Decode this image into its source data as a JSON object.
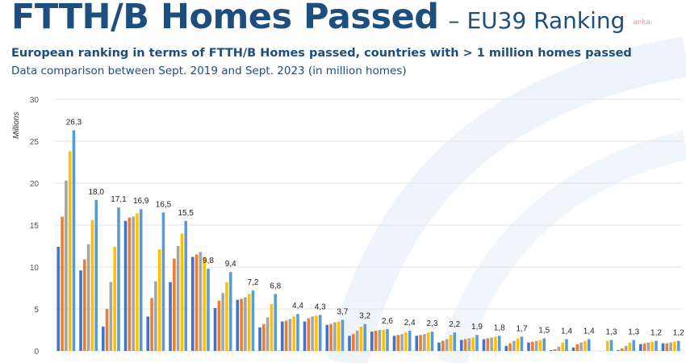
{
  "header": {
    "title": "FTTH/B Homes Passed",
    "title_suffix": "– EU39 Ranking",
    "watermark": "anka",
    "subtitle": "European ranking in terms of FTTH/B Homes passed, countries with > 1 million homes passed",
    "description": "Data comparison between Sept. 2019 and Sept. 2023 (in million homes)"
  },
  "chart_data": {
    "type": "bar",
    "ylabel": "Millions",
    "ylim": [
      0,
      30
    ],
    "yticks": [
      0,
      5,
      10,
      15,
      20,
      25,
      30
    ],
    "grid": true,
    "colors": [
      "#4472c4",
      "#ed7d31",
      "#a5a5a5",
      "#ffc000",
      "#5b9bd5"
    ],
    "series": [
      {
        "values": [
          12.4,
          9.6,
          2.9,
          15.5,
          4.1,
          8.2,
          11.2,
          5.1,
          6.1,
          2.8,
          3.5,
          3.5,
          3.1,
          1.8,
          2.3,
          1.8,
          1.8,
          1.0,
          1.3,
          1.4,
          0.6,
          1.0,
          0.1,
          0.4,
          0.0,
          0.1,
          0.8,
          0.9
        ]
      },
      {
        "values": [
          16.0,
          10.9,
          5.0,
          15.9,
          6.3,
          11.0,
          11.5,
          6.0,
          6.2,
          3.2,
          3.6,
          3.9,
          3.2,
          2.0,
          2.4,
          1.9,
          1.9,
          1.2,
          1.4,
          1.5,
          0.9,
          1.1,
          0.2,
          0.8,
          0.0,
          0.3,
          0.9,
          0.9
        ]
      },
      {
        "values": [
          20.3,
          12.7,
          8.2,
          16.0,
          8.3,
          12.5,
          11.8,
          6.9,
          6.4,
          4.0,
          3.8,
          4.1,
          3.4,
          2.4,
          2.5,
          2.0,
          2.0,
          1.4,
          1.5,
          1.6,
          1.2,
          1.2,
          0.5,
          1.0,
          0.0,
          0.6,
          1.0,
          1.0
        ]
      },
      {
        "values": [
          23.8,
          15.6,
          12.4,
          16.4,
          12.1,
          14.0,
          11.2,
          8.2,
          6.8,
          5.6,
          4.1,
          4.2,
          3.5,
          2.9,
          2.5,
          2.2,
          2.2,
          1.9,
          1.6,
          1.7,
          1.5,
          1.3,
          1.0,
          1.2,
          1.2,
          1.0,
          1.1,
          1.1
        ]
      },
      {
        "values": [
          26.3,
          18.0,
          17.1,
          16.9,
          16.5,
          15.5,
          9.8,
          9.4,
          7.2,
          6.8,
          4.4,
          4.3,
          3.7,
          3.2,
          2.6,
          2.4,
          2.3,
          2.2,
          1.9,
          1.8,
          1.7,
          1.5,
          1.4,
          1.4,
          1.3,
          1.3,
          1.2,
          1.2
        ]
      }
    ],
    "data_labels": [
      "26,3",
      "18,0",
      "17,1",
      "16,9",
      "16,5",
      "15,5",
      "9,8",
      "9,4",
      "7,2",
      "6,8",
      "4,4",
      "4,3",
      "3,7",
      "3,2",
      "2,6",
      "2,4",
      "2,3",
      "2,2",
      "1,9",
      "1,8",
      "1,7",
      "1,5",
      "1,4",
      "1,4",
      "1,3",
      "1,3",
      "1,2",
      "1,2"
    ]
  }
}
